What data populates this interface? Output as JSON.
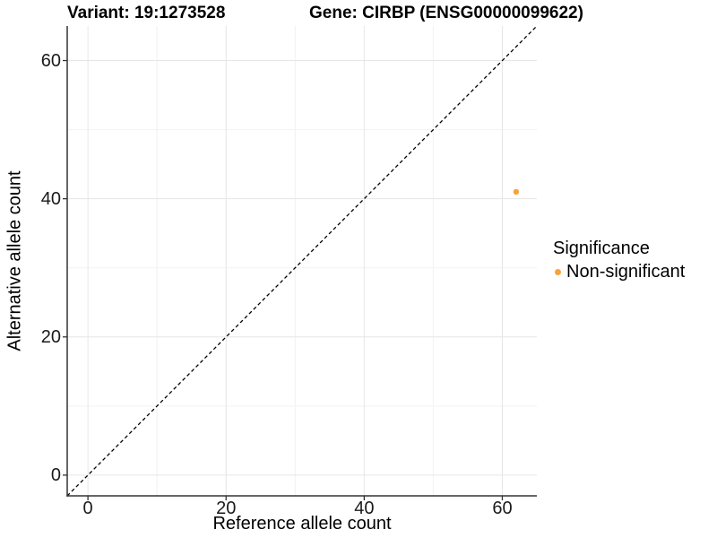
{
  "title": {
    "variant": "Variant: 19:1273528",
    "gene": "Gene: CIRBP (ENSG00000099622)"
  },
  "chart_data": {
    "type": "scatter",
    "title": "Variant: 19:1273528 — Gene: CIRBP (ENSG00000099622)",
    "xlabel": "Reference allele count",
    "ylabel": "Alternative allele count",
    "xlim": [
      -3,
      65
    ],
    "ylim": [
      -3,
      65
    ],
    "xticks": [
      0,
      20,
      40,
      60
    ],
    "yticks": [
      0,
      20,
      40,
      60
    ],
    "xticks_minor": [
      10,
      30,
      50
    ],
    "yticks_minor": [
      10,
      30,
      50
    ],
    "grid": "major+minor",
    "legend_position": "right-middle",
    "reference_line": {
      "kind": "identity y=x",
      "style": "dashed",
      "color": "#000000"
    },
    "series": [
      {
        "name": "Non-significant",
        "color": "#F7A33B",
        "marker": "circle",
        "points": [
          {
            "x": 62,
            "y": 41
          }
        ]
      }
    ]
  },
  "legend": {
    "title": "Significance",
    "items": [
      {
        "label": "Non-significant",
        "color": "#F7A33B"
      }
    ]
  },
  "colors": {
    "point_orange": "#F7A33B",
    "axis_line": "#333333",
    "tick_label": "#1a1a1a",
    "grid_major": "#e6e6e6",
    "grid_minor": "#f2f2f2",
    "reference_line": "#000000",
    "background": "#ffffff"
  }
}
